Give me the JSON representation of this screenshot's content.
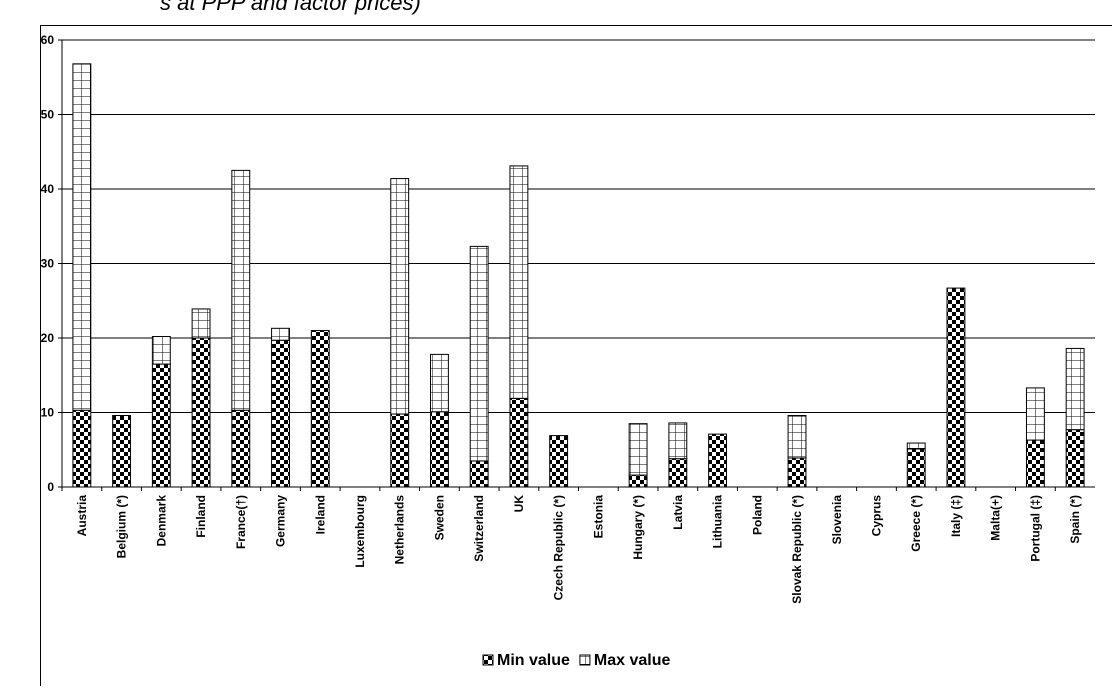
{
  "chart_data": {
    "type": "stacked_bar",
    "title": "s at PPP and factor prices)",
    "categories": [
      "Austria",
      "Belgium (*)",
      "Denmark",
      "Finland",
      "France(†)",
      "Germany",
      "Ireland",
      "Luxembourg",
      "Netherlands",
      "Sweden",
      "Switzerland",
      "UK",
      "Czech Republic (*)",
      "Estonia",
      "Hungary (*)",
      "Latvia",
      "Lithuania",
      "Poland",
      "Slovak Republic (*)",
      "Slovenia",
      "Cyprus",
      "Greece (*)",
      "Italy (‡)",
      "Malta(+)",
      "Portugal (‡)",
      "Spain (*)"
    ],
    "series": [
      {
        "name": "Min value",
        "color": "#000000",
        "values": [
          10.3,
          9.6,
          16.5,
          20,
          10.3,
          19.7,
          21,
          null,
          9.8,
          10.1,
          3.5,
          11.9,
          6.9,
          null,
          1.6,
          3.8,
          7.1,
          null,
          3.9,
          null,
          null,
          5.1,
          26.7,
          null,
          6.3,
          7.7
        ]
      },
      {
        "name": "Max value",
        "color": "#000000",
        "values": [
          46.5,
          0,
          3.7,
          3.9,
          32.2,
          1.6,
          0,
          null,
          31.6,
          7.7,
          28.8,
          31.2,
          0,
          null,
          6.9,
          4.8,
          0,
          null,
          5.7,
          null,
          null,
          0.8,
          0,
          null,
          7,
          10.9
        ]
      }
    ],
    "ylim": [
      0,
      60
    ],
    "yticks": [
      0,
      10,
      20,
      30,
      40,
      50,
      60
    ],
    "grid": true,
    "legend": "bottom"
  }
}
